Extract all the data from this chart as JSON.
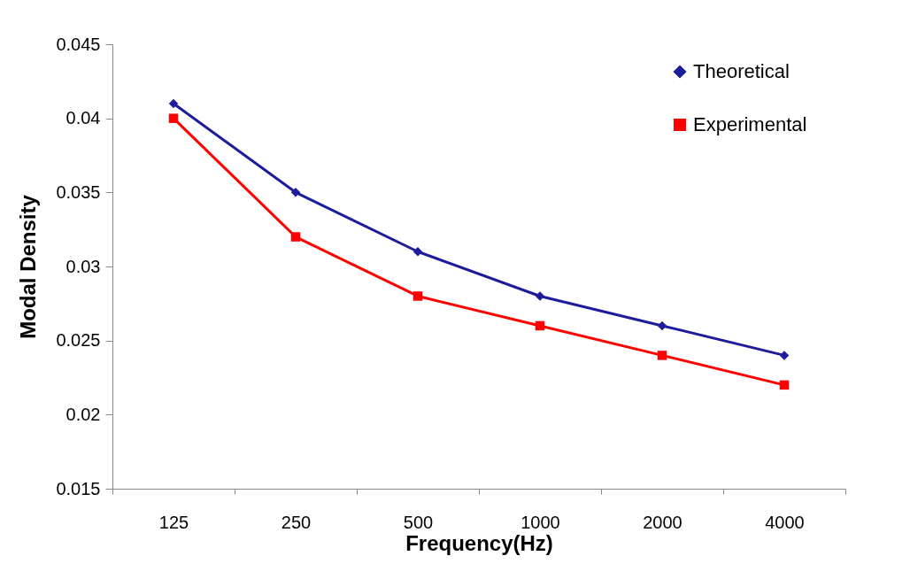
{
  "chart_data": {
    "type": "line",
    "xlabel": "Frequency(Hz)",
    "ylabel": "Modal Density",
    "categories": [
      "125",
      "250",
      "500",
      "1000",
      "2000",
      "4000"
    ],
    "series": [
      {
        "name": "Theoretical",
        "color": "#1c1c9c",
        "marker": "diamond",
        "values": [
          0.041,
          0.035,
          0.031,
          0.028,
          0.026,
          0.024
        ]
      },
      {
        "name": "Experimental",
        "color": "#ff0000",
        "marker": "square",
        "values": [
          0.04,
          0.032,
          0.028,
          0.026,
          0.024,
          0.022
        ]
      }
    ],
    "ylim": [
      0.015,
      0.045
    ],
    "yticks": [
      0.015,
      0.02,
      0.025,
      0.03,
      0.035,
      0.04,
      0.045
    ],
    "grid": false,
    "legend": "top right",
    "line_style": "solid"
  }
}
